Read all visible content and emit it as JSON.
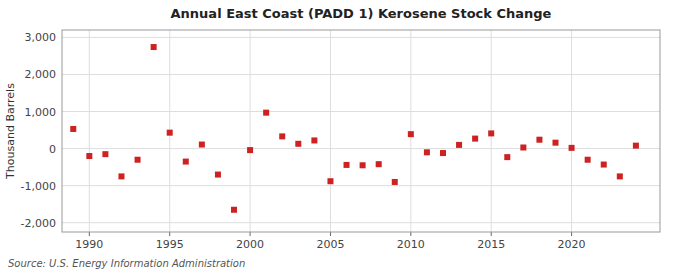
{
  "chart_data": {
    "type": "scatter",
    "title": "Annual East Coast (PADD 1) Kerosene Stock Change",
    "ylabel": "Thousand Barrels",
    "annotations": [
      "Source: U.S. Energy Information Administration"
    ],
    "color": "#cc2222",
    "marker": "square",
    "grid": true,
    "xlim": [
      1988.3,
      2025.5
    ],
    "xticks": [
      1990,
      1995,
      2000,
      2005,
      2010,
      2015,
      2020
    ],
    "ylim": [
      -2250,
      3200
    ],
    "yticks": [
      {
        "value": -2000,
        "label": "-2,000"
      },
      {
        "value": -1000,
        "label": "-1,000"
      },
      0,
      {
        "value": 1000,
        "label": "1,000"
      },
      {
        "value": 2000,
        "label": "2,000"
      },
      {
        "value": 3000,
        "label": "3,000"
      }
    ],
    "x": [
      1989,
      1990,
      1991,
      1992,
      1993,
      1994,
      1995,
      1996,
      1997,
      1998,
      1999,
      2000,
      2001,
      2002,
      2003,
      2004,
      2005,
      2006,
      2007,
      2008,
      2009,
      2010,
      2011,
      2012,
      2013,
      2014,
      2015,
      2016,
      2017,
      2018,
      2019,
      2020,
      2021,
      2022,
      2023,
      2024
    ],
    "values": [
      530,
      -200,
      -150,
      -750,
      -300,
      2740,
      430,
      -350,
      110,
      -700,
      -1650,
      -40,
      970,
      330,
      130,
      220,
      -880,
      -440,
      -450,
      -420,
      -900,
      390,
      -100,
      -120,
      100,
      270,
      410,
      -230,
      30,
      240,
      160,
      20,
      -300,
      -430,
      -750,
      80
    ]
  }
}
